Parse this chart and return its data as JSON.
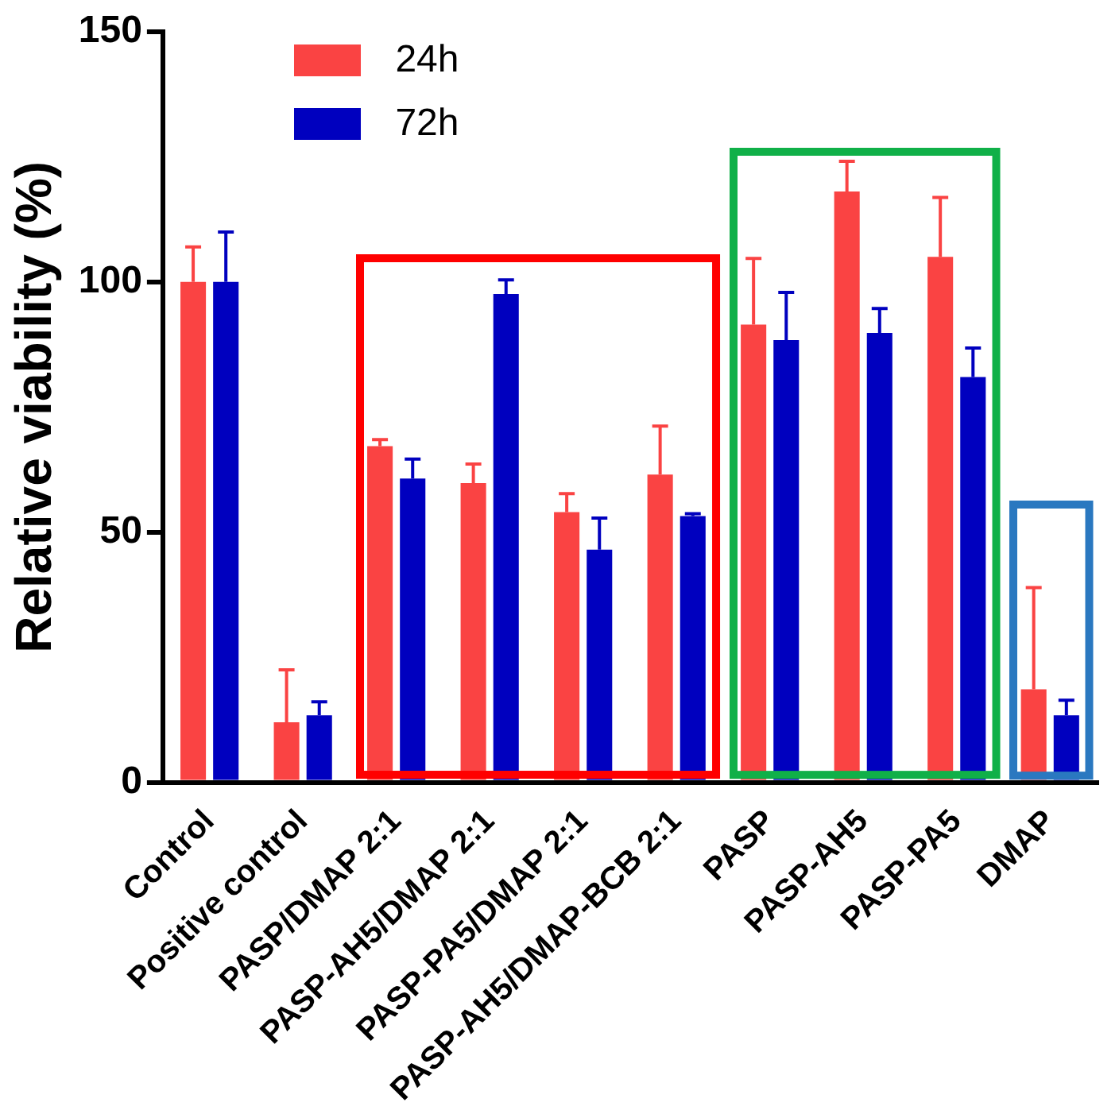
{
  "chart_data": {
    "type": "bar",
    "ylabel": "Relative viability (%)",
    "categories": [
      "Control",
      "Positive control",
      "PASP/DMAP 2:1",
      "PASP-AH5/DMAP 2:1",
      "PASP-PA5/DMAP 2:1",
      "PASP-AH5/DMAP-BCB 2:1",
      "PASP",
      "PASP-AH5",
      "PASP-PA5",
      "DMAP"
    ],
    "series": [
      {
        "name": "24h",
        "color": "#fa4343",
        "values": [
          100,
          12,
          67.2,
          59.8,
          54,
          61.5,
          91.5,
          118.1,
          105,
          18.6
        ],
        "errors": [
          7,
          10.5,
          1.3,
          3.8,
          3.7,
          9.7,
          13.2,
          6,
          11.9,
          20.3
        ]
      },
      {
        "name": "72h",
        "color": "#0000bf",
        "values": [
          100,
          13.4,
          60.7,
          97.6,
          46.5,
          53.2,
          88.4,
          89.8,
          81,
          13.4
        ],
        "errors": [
          10,
          2.7,
          3.9,
          2.8,
          6.3,
          0.5,
          9.5,
          4.9,
          5.8,
          3
        ]
      }
    ],
    "ylim": [
      0,
      150
    ],
    "yticks": [
      0,
      50,
      100,
      150
    ],
    "grid": false,
    "legend": "top left"
  }
}
